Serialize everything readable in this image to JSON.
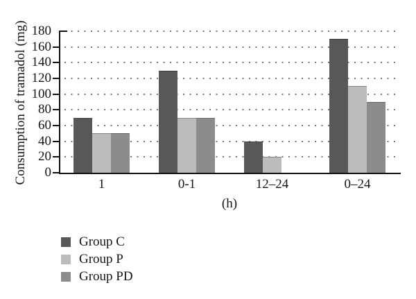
{
  "figure": {
    "background": "#ffffff",
    "axis_color": "#111111",
    "grid_dot_color": "#767676"
  },
  "chart_data": {
    "type": "bar",
    "xlabel": "(h)",
    "ylabel": "Consumption of tramadol (mg)",
    "categories": [
      "1",
      "0-1",
      "12–24",
      "0–24"
    ],
    "series": [
      {
        "name": "Group C",
        "color": "#585858",
        "values": [
          70,
          130,
          40,
          170
        ]
      },
      {
        "name": "Group P",
        "color": "#bcbcbc",
        "values": [
          50,
          70,
          20,
          110
        ]
      },
      {
        "name": "Group PD",
        "color": "#8c8c8c",
        "values": [
          50,
          70,
          0,
          90
        ]
      }
    ],
    "ylim": [
      0,
      180
    ],
    "ytick_step": 20,
    "ytick_labels": [
      "0",
      "20",
      "40",
      "60",
      "80",
      "100",
      "120",
      "140",
      "160",
      "180"
    ],
    "grid": "dotted-horizontal",
    "legend_position": "bottom-left"
  }
}
